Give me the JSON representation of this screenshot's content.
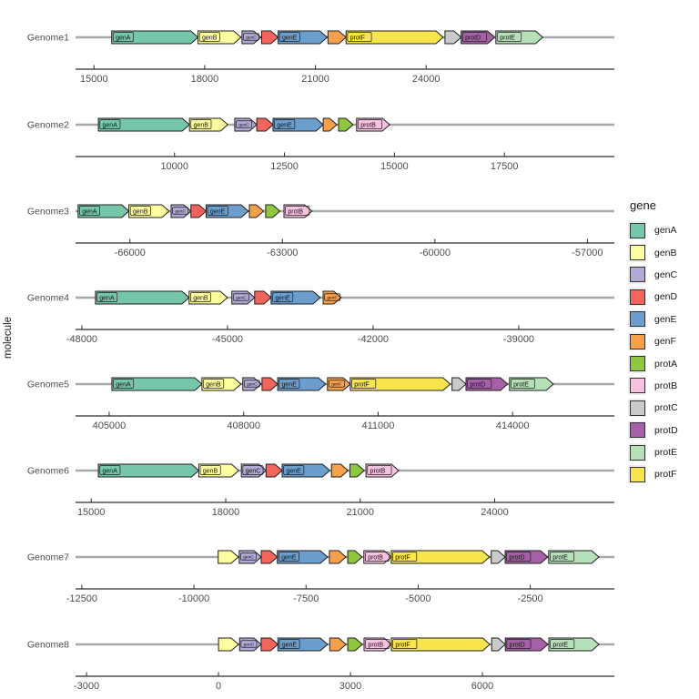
{
  "figure": {
    "ylabel": "molecule"
  },
  "legend": {
    "title": "gene",
    "items": [
      {
        "name": "genA",
        "color": "#76C6AC"
      },
      {
        "name": "genB",
        "color": "#FDFD9F"
      },
      {
        "name": "genC",
        "color": "#B2A9D4"
      },
      {
        "name": "genD",
        "color": "#F3645C"
      },
      {
        "name": "genE",
        "color": "#6B9DCD"
      },
      {
        "name": "genF",
        "color": "#F7A04C"
      },
      {
        "name": "protA",
        "color": "#8FC73E"
      },
      {
        "name": "protB",
        "color": "#F7C2E0"
      },
      {
        "name": "protC",
        "color": "#CACACA"
      },
      {
        "name": "protD",
        "color": "#A660A8"
      },
      {
        "name": "protE",
        "color": "#B6E0B8"
      },
      {
        "name": "protF",
        "color": "#F8E44C"
      }
    ]
  },
  "chart_data": {
    "type": "gene_map",
    "ylabel": "molecule",
    "legend_title": "gene",
    "legend_position": "right",
    "grid": false,
    "genomes": [
      {
        "name": "Genome1",
        "axis": {
          "min": 14500,
          "max": 29100,
          "ticks": [
            15000,
            18000,
            21000,
            24000
          ]
        },
        "genes": [
          {
            "gene": "genA",
            "start": 15480,
            "end": 17820,
            "lab": true
          },
          {
            "gene": "genB",
            "start": 17820,
            "end": 18980,
            "lab": true
          },
          {
            "gene": "genC",
            "start": 19010,
            "end": 19520,
            "lab": true
          },
          {
            "gene": "genD",
            "start": 19540,
            "end": 19990,
            "lab": false
          },
          {
            "gene": "genE",
            "start": 19990,
            "end": 21320,
            "lab": true
          },
          {
            "gene": "genF",
            "start": 21340,
            "end": 21830,
            "lab": false
          },
          {
            "gene": "protF",
            "start": 21830,
            "end": 24460,
            "lab": true
          },
          {
            "gene": "protC",
            "start": 24510,
            "end": 24950,
            "lab": false
          },
          {
            "gene": "protD",
            "start": 24950,
            "end": 25860,
            "lab": true
          },
          {
            "gene": "protE",
            "start": 25890,
            "end": 27160,
            "lab": true
          }
        ]
      },
      {
        "name": "Genome2",
        "axis": {
          "min": 7750,
          "max": 20000,
          "ticks": [
            10000,
            12500,
            15000,
            17500
          ]
        },
        "genes": [
          {
            "gene": "genA",
            "start": 8270,
            "end": 10340,
            "lab": true
          },
          {
            "gene": "genB",
            "start": 10340,
            "end": 11210,
            "lab": true
          },
          {
            "gene": "genC",
            "start": 11370,
            "end": 11870,
            "lab": true
          },
          {
            "gene": "genD",
            "start": 11870,
            "end": 12240,
            "lab": false
          },
          {
            "gene": "genE",
            "start": 12240,
            "end": 13380,
            "lab": true
          },
          {
            "gene": "genF",
            "start": 13380,
            "end": 13690,
            "lab": false
          },
          {
            "gene": "protA",
            "start": 13730,
            "end": 14060,
            "lab": false
          },
          {
            "gene": "protB",
            "start": 14140,
            "end": 14890,
            "lab": true
          }
        ]
      },
      {
        "name": "Genome3",
        "axis": {
          "min": -67070,
          "max": -56470,
          "ticks": [
            -66000,
            -63000,
            -60000,
            -57000
          ]
        },
        "genes": [
          {
            "gene": "genA",
            "start": -67020,
            "end": -66020,
            "lab": true
          },
          {
            "gene": "genB",
            "start": -66020,
            "end": -65230,
            "lab": true
          },
          {
            "gene": "genC",
            "start": -65190,
            "end": -64800,
            "lab": true
          },
          {
            "gene": "genD",
            "start": -64800,
            "end": -64500,
            "lab": false
          },
          {
            "gene": "genE",
            "start": -64500,
            "end": -63670,
            "lab": true
          },
          {
            "gene": "genF",
            "start": -63650,
            "end": -63370,
            "lab": false
          },
          {
            "gene": "protA",
            "start": -63330,
            "end": -63050,
            "lab": false
          },
          {
            "gene": "protB",
            "start": -62970,
            "end": -62420,
            "lab": true
          }
        ]
      },
      {
        "name": "Genome4",
        "axis": {
          "min": -48130,
          "max": -37030,
          "ticks": [
            -48000,
            -45000,
            -42000,
            -39000
          ]
        },
        "genes": [
          {
            "gene": "genA",
            "start": -47720,
            "end": -45790,
            "lab": true
          },
          {
            "gene": "genB",
            "start": -45790,
            "end": -45000,
            "lab": true
          },
          {
            "gene": "genC",
            "start": -44910,
            "end": -44440,
            "lab": true
          },
          {
            "gene": "genD",
            "start": -44440,
            "end": -44100,
            "lab": false
          },
          {
            "gene": "genE",
            "start": -44100,
            "end": -43090,
            "lab": true
          },
          {
            "gene": "genF",
            "start": -43030,
            "end": -42660,
            "lab": true
          }
        ]
      },
      {
        "name": "Genome5",
        "axis": {
          "min": 404250,
          "max": 416270,
          "ticks": [
            405000,
            408000,
            411000,
            414000
          ]
        },
        "genes": [
          {
            "gene": "genA",
            "start": 405060,
            "end": 407070,
            "lab": true
          },
          {
            "gene": "genB",
            "start": 407070,
            "end": 407940,
            "lab": true
          },
          {
            "gene": "genC",
            "start": 407980,
            "end": 408390,
            "lab": true
          },
          {
            "gene": "genD",
            "start": 408410,
            "end": 408760,
            "lab": false
          },
          {
            "gene": "genE",
            "start": 408760,
            "end": 409830,
            "lab": true
          },
          {
            "gene": "genF",
            "start": 409870,
            "end": 410380,
            "lab": true
          },
          {
            "gene": "protF",
            "start": 410380,
            "end": 412610,
            "lab": true
          },
          {
            "gene": "protC",
            "start": 412650,
            "end": 412960,
            "lab": false
          },
          {
            "gene": "protD",
            "start": 412960,
            "end": 413890,
            "lab": true
          },
          {
            "gene": "protE",
            "start": 413930,
            "end": 414910,
            "lab": true
          }
        ]
      },
      {
        "name": "Genome6",
        "axis": {
          "min": 14650,
          "max": 26670,
          "ticks": [
            15000,
            18000,
            21000,
            24000
          ]
        },
        "genes": [
          {
            "gene": "genA",
            "start": 15160,
            "end": 17400,
            "lab": true
          },
          {
            "gene": "genB",
            "start": 17400,
            "end": 18290,
            "lab": true
          },
          {
            "gene": "genC",
            "start": 18350,
            "end": 18900,
            "lab": true
          },
          {
            "gene": "genD",
            "start": 18900,
            "end": 19260,
            "lab": false
          },
          {
            "gene": "genE",
            "start": 19260,
            "end": 20320,
            "lab": true
          },
          {
            "gene": "genF",
            "start": 20360,
            "end": 20730,
            "lab": false
          },
          {
            "gene": "protA",
            "start": 20770,
            "end": 21090,
            "lab": false
          },
          {
            "gene": "protB",
            "start": 21130,
            "end": 21860,
            "lab": true
          }
        ]
      },
      {
        "name": "Genome7",
        "axis": {
          "min": -12640,
          "max": -625,
          "ticks": [
            -12500,
            -10000,
            -7500,
            -5000,
            -2500
          ]
        },
        "genes": [
          {
            "gene": "genB",
            "start": -9460,
            "end": -9010,
            "lab": false
          },
          {
            "gene": "genC",
            "start": -8990,
            "end": -8500,
            "lab": true
          },
          {
            "gene": "genD",
            "start": -8500,
            "end": -8140,
            "lab": false
          },
          {
            "gene": "genE",
            "start": -8140,
            "end": -7020,
            "lab": true
          },
          {
            "gene": "genF",
            "start": -6980,
            "end": -6610,
            "lab": false
          },
          {
            "gene": "protA",
            "start": -6570,
            "end": -6250,
            "lab": false
          },
          {
            "gene": "protB",
            "start": -6210,
            "end": -5600,
            "lab": true
          },
          {
            "gene": "protF",
            "start": -5600,
            "end": -3410,
            "lab": true
          },
          {
            "gene": "protC",
            "start": -3370,
            "end": -3060,
            "lab": false
          },
          {
            "gene": "protD",
            "start": -3060,
            "end": -2110,
            "lab": true
          },
          {
            "gene": "protE",
            "start": -2090,
            "end": -970,
            "lab": true
          }
        ]
      },
      {
        "name": "Genome8",
        "axis": {
          "min": -3250,
          "max": 9000,
          "ticks": [
            -3000,
            0,
            3000,
            6000
          ]
        },
        "genes": [
          {
            "gene": "genB",
            "start": 0,
            "end": 455,
            "lab": false
          },
          {
            "gene": "genC",
            "start": 480,
            "end": 970,
            "lab": true
          },
          {
            "gene": "genD",
            "start": 970,
            "end": 1350,
            "lab": false
          },
          {
            "gene": "genE",
            "start": 1350,
            "end": 2480,
            "lab": true
          },
          {
            "gene": "genF",
            "start": 2530,
            "end": 2900,
            "lab": false
          },
          {
            "gene": "protA",
            "start": 2940,
            "end": 3270,
            "lab": false
          },
          {
            "gene": "protB",
            "start": 3310,
            "end": 3930,
            "lab": true
          },
          {
            "gene": "protF",
            "start": 3930,
            "end": 6170,
            "lab": true
          },
          {
            "gene": "protC",
            "start": 6210,
            "end": 6520,
            "lab": false
          },
          {
            "gene": "protD",
            "start": 6520,
            "end": 7490,
            "lab": true
          },
          {
            "gene": "protE",
            "start": 7510,
            "end": 8650,
            "lab": true
          }
        ]
      }
    ]
  }
}
